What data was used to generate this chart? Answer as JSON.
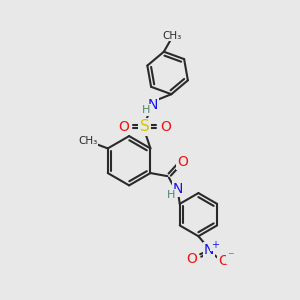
{
  "bg_color": "#e8e8e8",
  "bond_color": "#2a2a2a",
  "bond_width": 1.5,
  "colors": {
    "N": "#1414ee",
    "O": "#ee1414",
    "S": "#cccc00",
    "H": "#4a8a6a",
    "C": "#2a2a2a"
  },
  "figsize": [
    3.0,
    3.0
  ],
  "dpi": 100
}
